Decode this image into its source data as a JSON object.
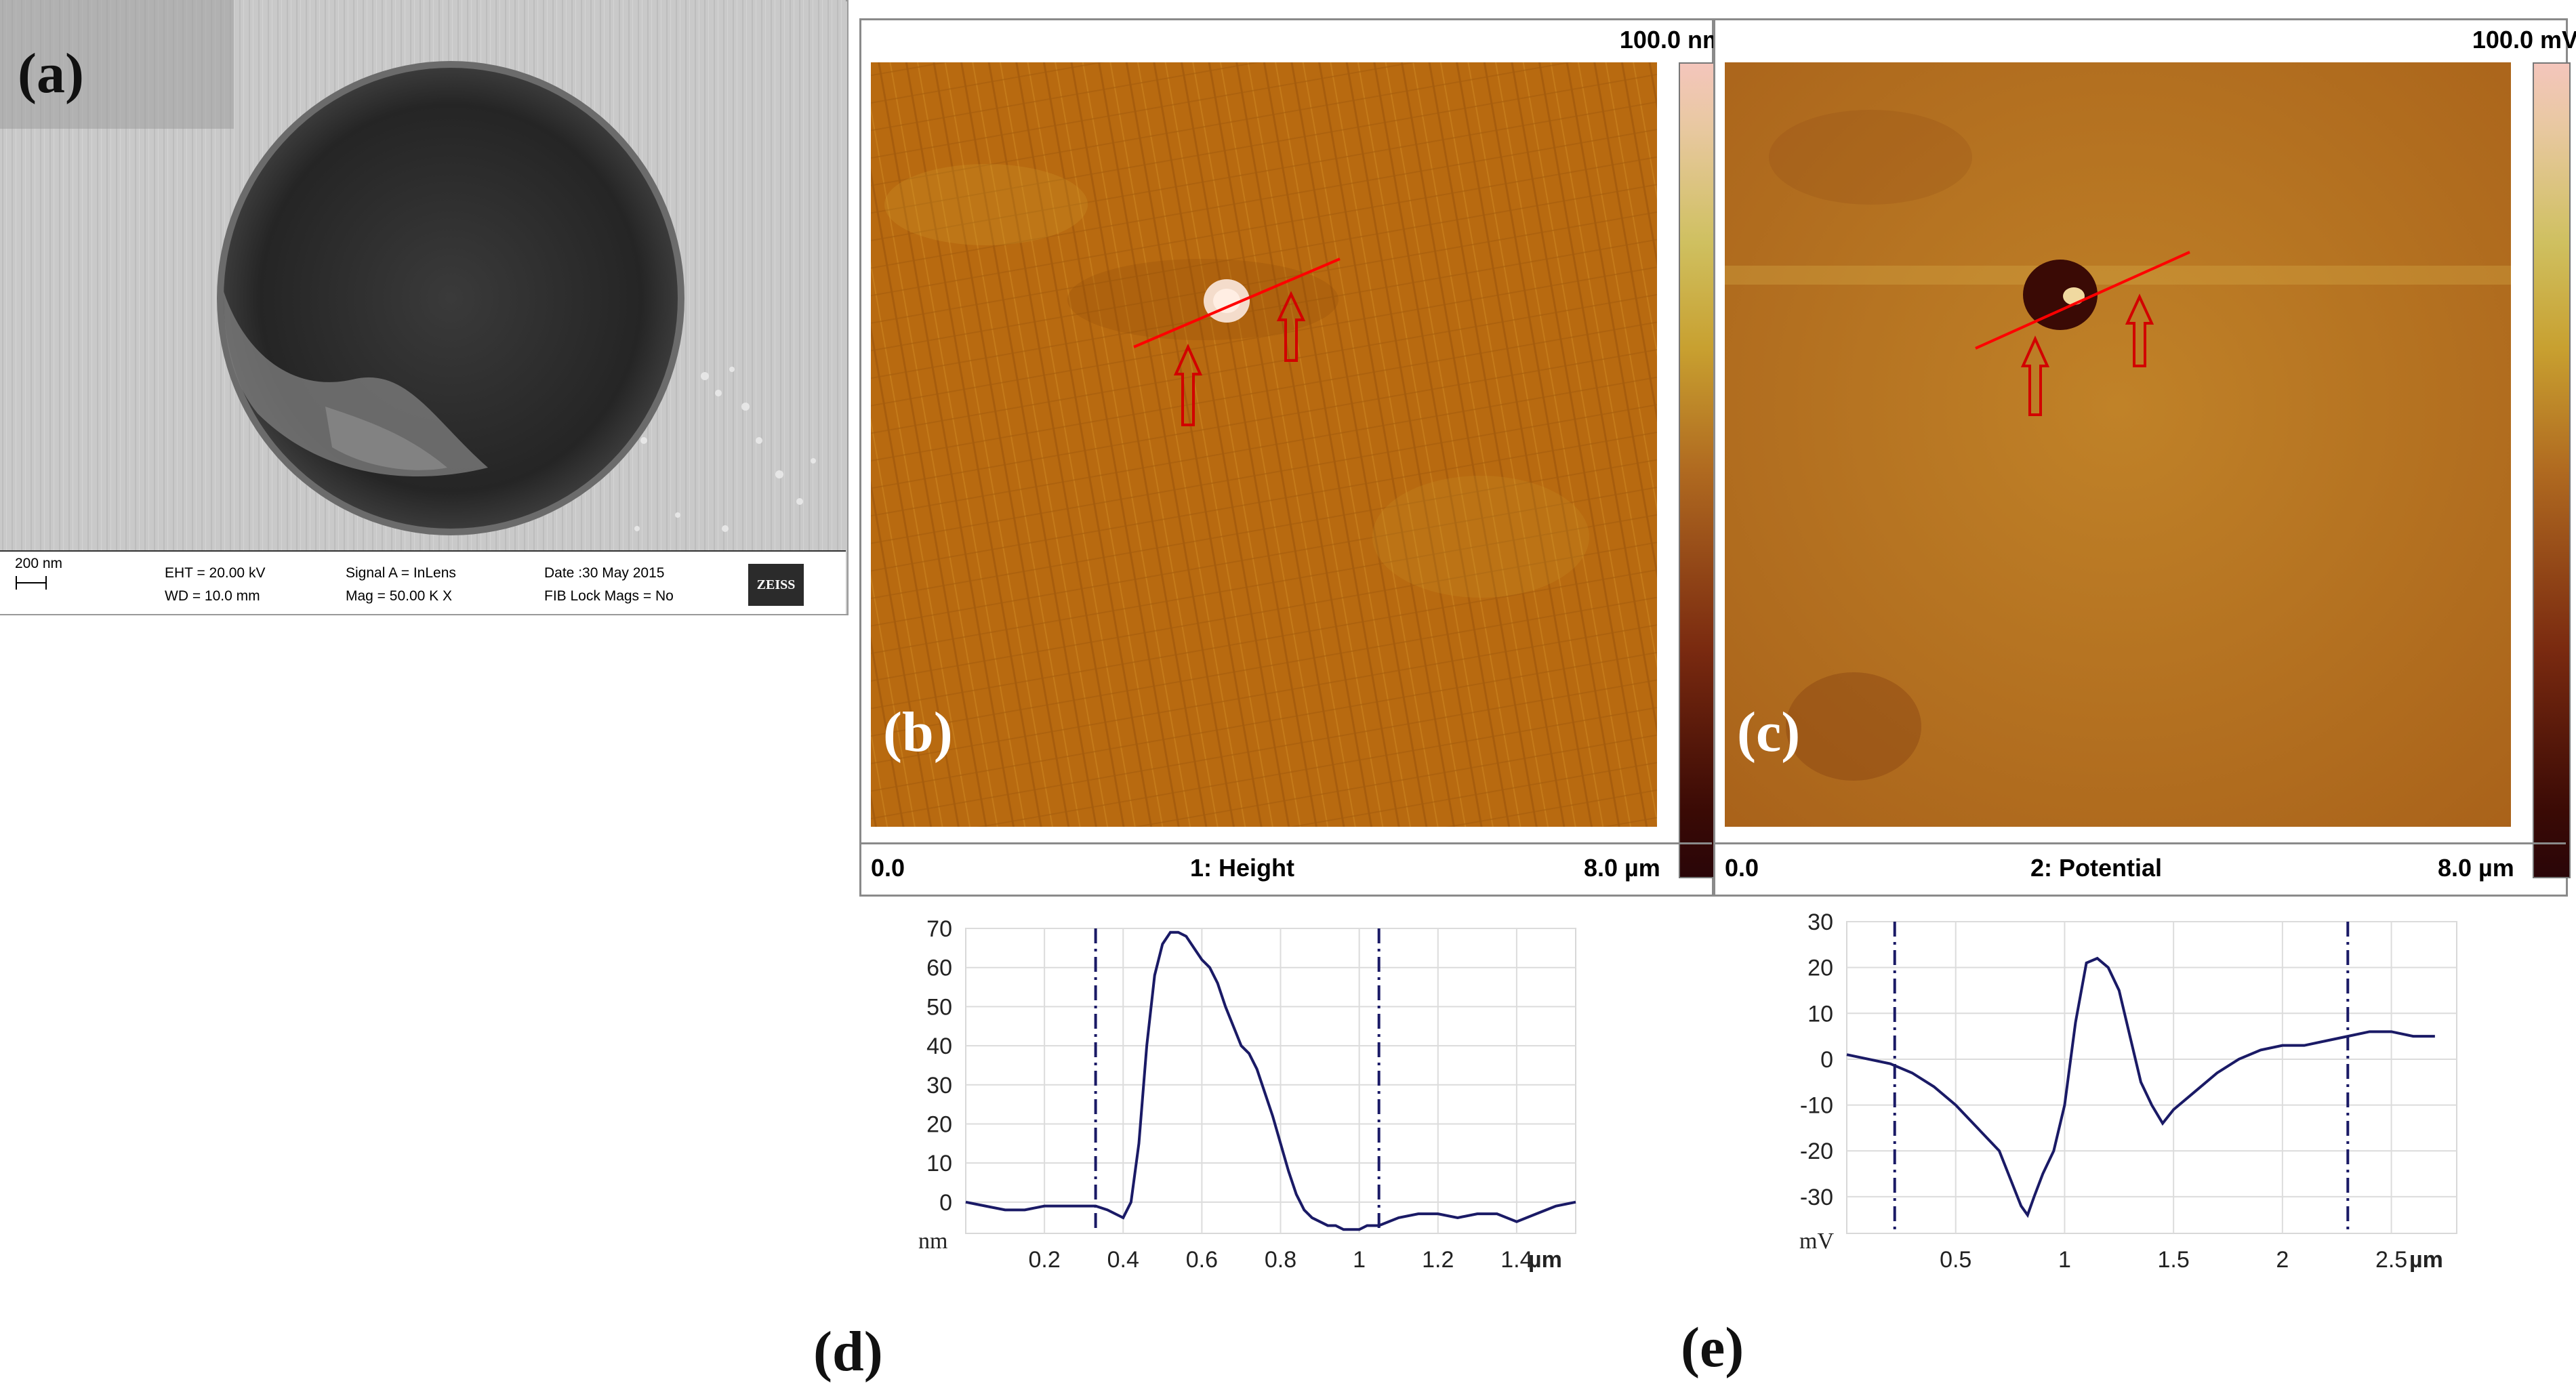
{
  "panels": {
    "a": {
      "label": "(a)",
      "info": {
        "scale_bar": "200 nm",
        "eht": "EHT = 20.00 kV",
        "wd": "WD = 10.0 mm",
        "signal": "Signal A = InLens",
        "mag": "Mag =  50.00 K X",
        "date": "Date :30 May 2015",
        "fib": "FIB Lock Mags = No",
        "logo": "ZEISS"
      }
    },
    "b": {
      "label": "(b)",
      "scale_max": "100.0 nm",
      "x_min": "0.0",
      "title": "1: Height",
      "x_max": "8.0 µm"
    },
    "c": {
      "label": "(c)",
      "scale_max": "100.0 mV",
      "x_min": "0.0",
      "title": "2: Potential",
      "x_max": "8.0 µm"
    },
    "d": {
      "label": "(d)"
    },
    "e": {
      "label": "(e)"
    }
  },
  "colors": {
    "afm_dark": "#2a0a05",
    "afm_mid": "#b5651d",
    "afm_light": "#f2d9c8",
    "profile_line": "#1a1a66",
    "line_cursor": "#ff0000"
  },
  "chart_data": [
    {
      "type": "line",
      "panel": "d",
      "xlabel": "µm",
      "ylabel": "nm",
      "xlim": [
        0,
        1.55
      ],
      "ylim": [
        -8,
        70
      ],
      "x_ticks": [
        0.2,
        0.4,
        0.6,
        0.8,
        1,
        1.2,
        1.4
      ],
      "x_tick_labels": [
        "0.2",
        "0.4",
        "0.6",
        "0.8",
        "1",
        "1.2",
        "1.4"
      ],
      "y_ticks": [
        0,
        10,
        20,
        30,
        40,
        50,
        60,
        70
      ],
      "y_tick_labels": [
        "0",
        "10",
        "20",
        "30",
        "40",
        "50",
        "60",
        "70"
      ],
      "cursors": [
        0.33,
        1.05
      ],
      "grid": true,
      "series": [
        {
          "x": [
            0.0,
            0.05,
            0.1,
            0.15,
            0.2,
            0.25,
            0.3,
            0.33,
            0.36,
            0.4,
            0.42,
            0.44,
            0.46,
            0.48,
            0.5,
            0.52,
            0.54,
            0.56,
            0.58,
            0.6,
            0.62,
            0.64,
            0.66,
            0.68,
            0.7,
            0.72,
            0.74,
            0.76,
            0.78,
            0.8,
            0.82,
            0.84,
            0.86,
            0.88,
            0.9,
            0.92,
            0.94,
            0.96,
            0.98,
            1.0,
            1.02,
            1.05,
            1.1,
            1.15,
            1.2,
            1.25,
            1.3,
            1.35,
            1.4,
            1.45,
            1.5,
            1.55
          ],
          "y": [
            0,
            -1,
            -2,
            -2,
            -1,
            -1,
            -1,
            -1,
            -2,
            -4,
            0,
            15,
            40,
            58,
            66,
            69,
            69,
            68,
            65,
            62,
            60,
            56,
            50,
            45,
            40,
            38,
            34,
            28,
            22,
            15,
            8,
            2,
            -2,
            -4,
            -5,
            -6,
            -6,
            -7,
            -7,
            -7,
            -6,
            -6,
            -4,
            -3,
            -3,
            -4,
            -3,
            -3,
            -5,
            -3,
            -1,
            0
          ]
        }
      ]
    },
    {
      "type": "line",
      "panel": "e",
      "xlabel": "µm",
      "ylabel": "mV",
      "xlim": [
        0,
        2.8
      ],
      "ylim": [
        -38,
        30
      ],
      "x_ticks": [
        0.5,
        1,
        1.5,
        2,
        2.5
      ],
      "x_tick_labels": [
        "0.5",
        "1",
        "1.5",
        "2",
        "2.5"
      ],
      "y_ticks": [
        -30,
        -20,
        -10,
        0,
        10,
        20,
        30
      ],
      "y_tick_labels": [
        "-30",
        "-20",
        "-10",
        "0",
        "10",
        "20",
        "30"
      ],
      "cursors": [
        0.22,
        2.3
      ],
      "grid": true,
      "series": [
        {
          "x": [
            0.0,
            0.1,
            0.2,
            0.3,
            0.4,
            0.5,
            0.6,
            0.7,
            0.75,
            0.8,
            0.83,
            0.86,
            0.9,
            0.95,
            1.0,
            1.05,
            1.1,
            1.15,
            1.2,
            1.25,
            1.3,
            1.35,
            1.4,
            1.45,
            1.5,
            1.6,
            1.7,
            1.8,
            1.9,
            2.0,
            2.1,
            2.2,
            2.3,
            2.4,
            2.5,
            2.6,
            2.7
          ],
          "y": [
            1,
            0,
            -1,
            -3,
            -6,
            -10,
            -15,
            -20,
            -26,
            -32,
            -34,
            -30,
            -25,
            -20,
            -10,
            8,
            21,
            22,
            20,
            15,
            5,
            -5,
            -10,
            -14,
            -11,
            -7,
            -3,
            0,
            2,
            3,
            3,
            4,
            5,
            6,
            6,
            5,
            5
          ]
        }
      ]
    }
  ]
}
